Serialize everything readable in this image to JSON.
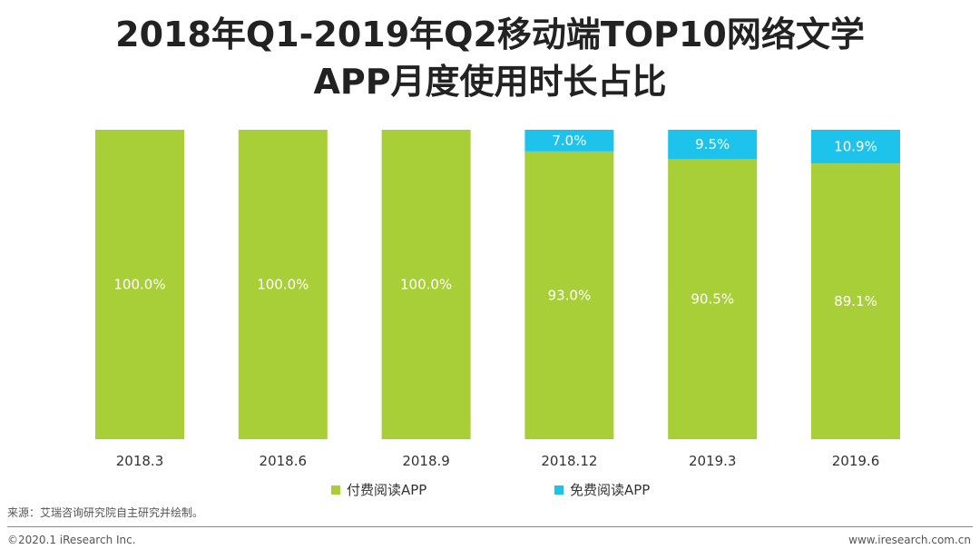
{
  "title_line1": "2018年Q1-2019年Q2移动端TOP10网络文学",
  "title_line2": "APP月度使用时长占比",
  "legend": {
    "paid": "付费阅读APP",
    "free": "免费阅读APP"
  },
  "colors": {
    "paid": "#a9cf38",
    "free": "#1ec3ec"
  },
  "source": "来源：艾瑞咨询研究院自主研究并绘制。",
  "copyright": "©2020.1 iResearch Inc.",
  "website": "www.iresearch.com.cn",
  "chart_data": {
    "type": "bar",
    "stacked": true,
    "normalized": true,
    "title": "2018年Q1-2019年Q2移动端TOP10网络文学APP月度使用时长占比",
    "categories": [
      "2018.3",
      "2018.6",
      "2018.9",
      "2018.12",
      "2019.3",
      "2019.6"
    ],
    "series": [
      {
        "name": "付费阅读APP",
        "values": [
          100.0,
          100.0,
          100.0,
          93.0,
          90.5,
          89.1
        ],
        "labels": [
          "100.0%",
          "100.0%",
          "100.0%",
          "93.0%",
          "90.5%",
          "89.1%"
        ]
      },
      {
        "name": "免费阅读APP",
        "values": [
          0,
          0,
          0,
          7.0,
          9.5,
          10.9
        ],
        "labels": [
          "",
          "",
          "",
          "7.0%",
          "9.5%",
          "10.9%"
        ]
      }
    ],
    "ylim": [
      0,
      100
    ],
    "xlabel": "",
    "ylabel": "",
    "legend_position": "bottom"
  }
}
